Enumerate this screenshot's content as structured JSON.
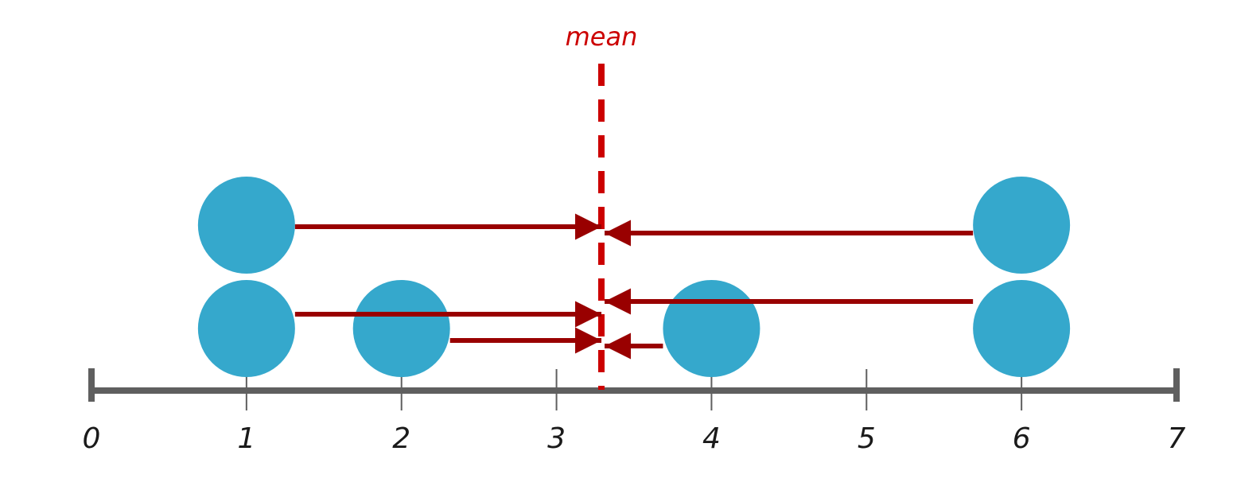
{
  "diagram": {
    "axis": {
      "min": 0,
      "max": 7,
      "tick_labels": [
        "0",
        "1",
        "2",
        "3",
        "4",
        "5",
        "6",
        "7"
      ],
      "color": "#5f5f5f"
    },
    "mean": {
      "label": "mean",
      "value": 3.3,
      "color": "#cc0000"
    },
    "points": [
      {
        "value": 1,
        "stack": 2
      },
      {
        "value": 1,
        "stack": 1
      },
      {
        "value": 2,
        "stack": 1
      },
      {
        "value": 4,
        "stack": 1
      },
      {
        "value": 6,
        "stack": 2
      },
      {
        "value": 6,
        "stack": 1
      }
    ],
    "point_color": "#35a8cc",
    "arrow_color": "#990000"
  }
}
